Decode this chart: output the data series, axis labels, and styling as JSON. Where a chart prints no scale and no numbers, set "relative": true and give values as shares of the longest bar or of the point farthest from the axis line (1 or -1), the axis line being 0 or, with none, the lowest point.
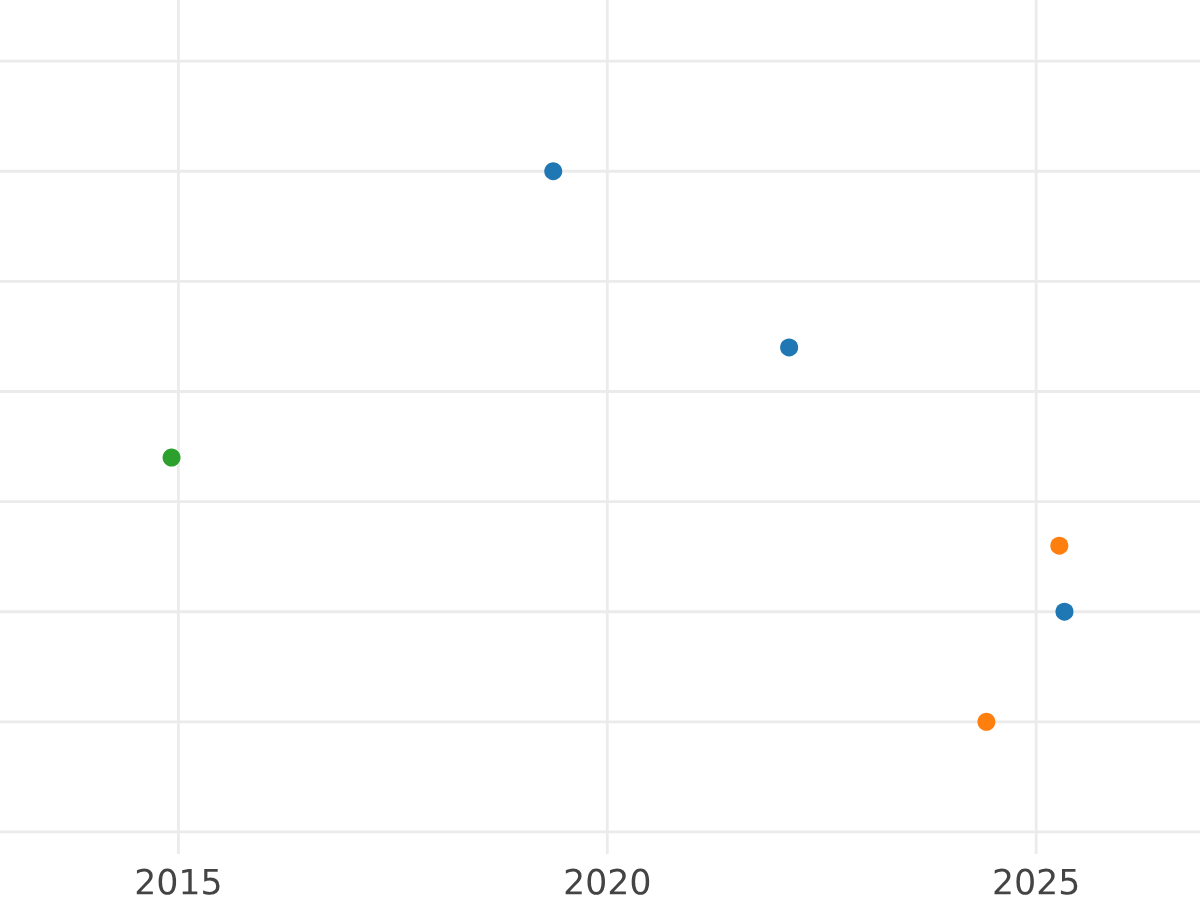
{
  "chart_data": {
    "type": "scatter",
    "relative": true,
    "xlim": [
      2012.92,
      2026.91
    ],
    "xticks": [
      2015,
      2020,
      2025
    ],
    "grid": true,
    "marker": "circle",
    "series": [
      {
        "color": "#1f77b4",
        "x": [
          2019.37,
          2022.12,
          2025.33
        ],
        "values": [
          1,
          0.68,
          0.2
        ]
      },
      {
        "color": "#ff7f0e",
        "x": [
          2025.27,
          2024.42
        ],
        "values": [
          0.32,
          0
        ]
      },
      {
        "color": "#2ca02c",
        "x": [
          2014.92
        ],
        "values": [
          0.48
        ]
      }
    ]
  }
}
